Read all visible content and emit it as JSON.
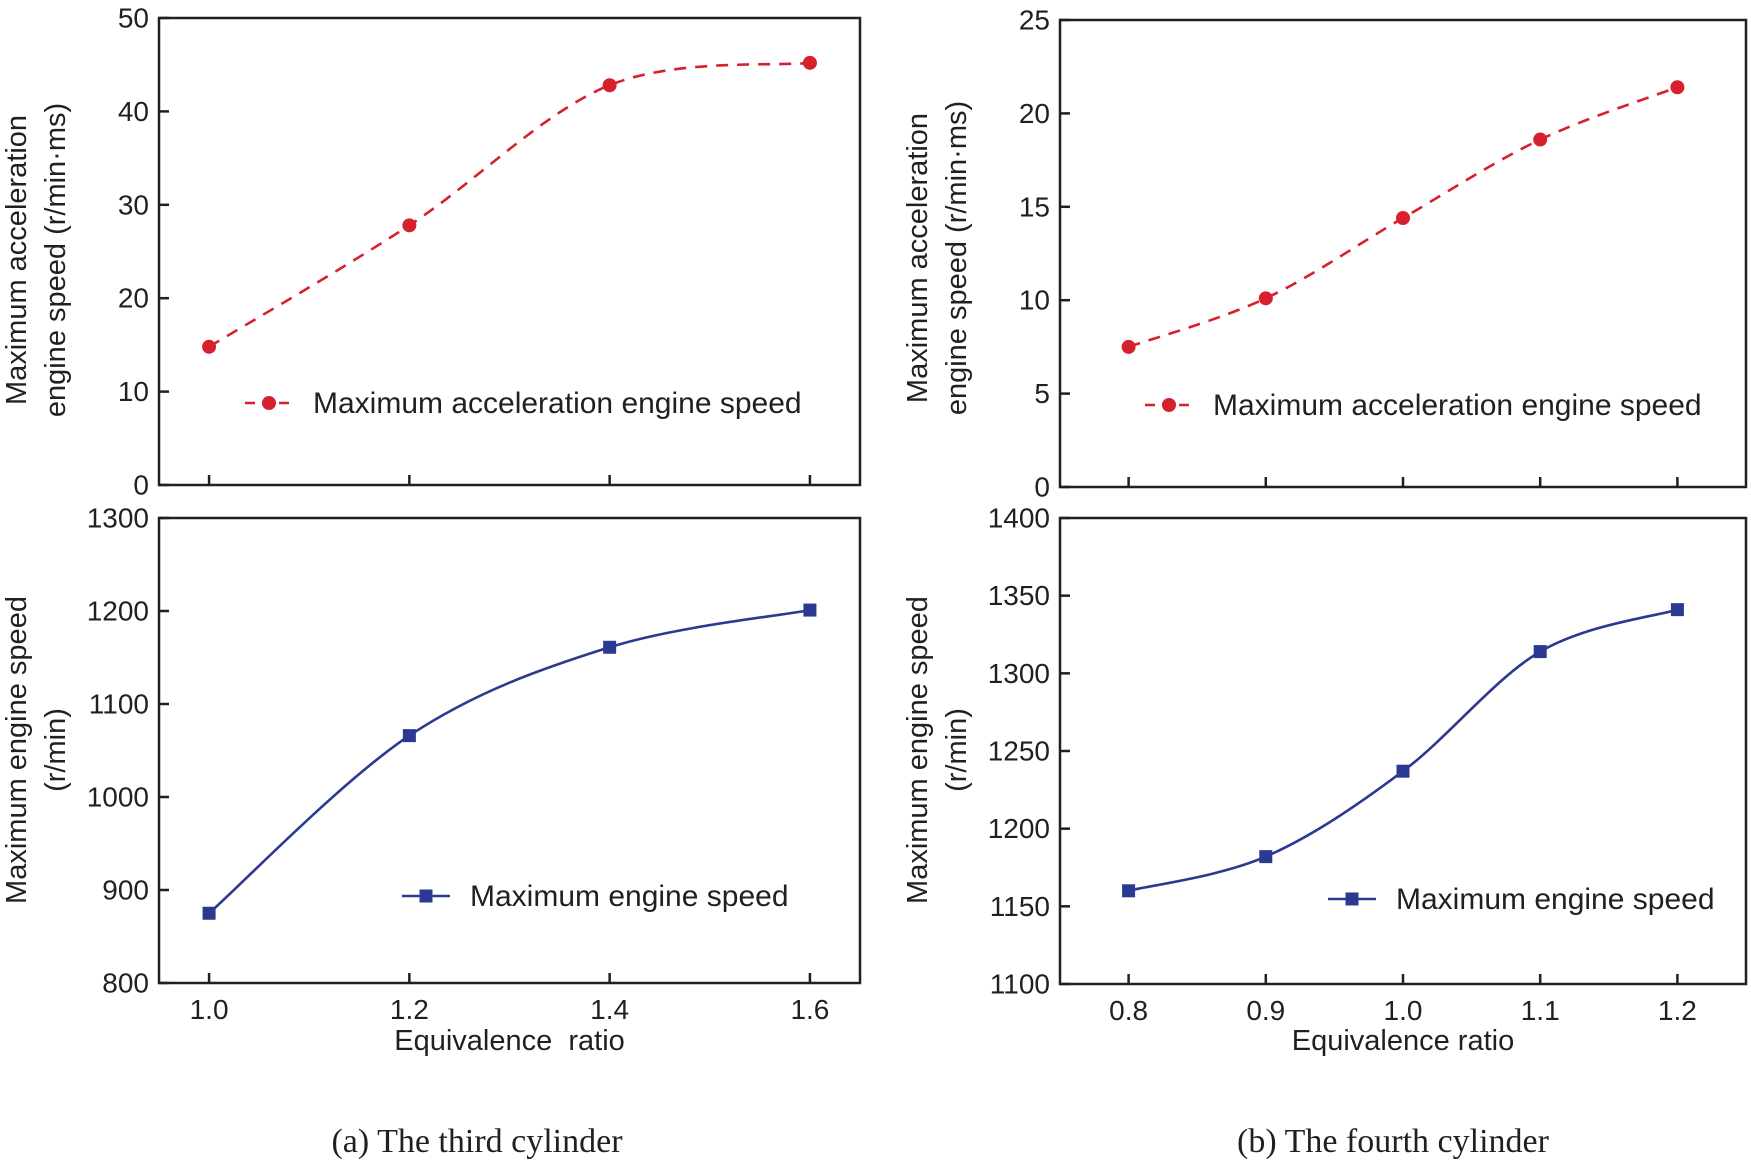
{
  "chart_data": [
    {
      "type": "line",
      "panel": "a",
      "position": "top",
      "title": "",
      "xlabel": "",
      "ylabel_lines": [
        "Maximum acceleration",
        "engine speed (r/min·ms)"
      ],
      "ylim": [
        0,
        50
      ],
      "yticks": [
        "0",
        "10",
        "20",
        "30",
        "40",
        "50"
      ],
      "xlim": [
        0.95,
        1.65
      ],
      "xticks": [
        1.0,
        1.2,
        1.4,
        1.6
      ],
      "xtick_labels": [],
      "series": [
        {
          "name": "Maximum acceleration engine speed",
          "x": [
            1.0,
            1.2,
            1.4,
            1.6
          ],
          "y": [
            14.8,
            27.8,
            42.8,
            45.2
          ],
          "color": "#d7202e",
          "marker": "circle",
          "line_style": "dashed"
        }
      ],
      "legend_position": "bottom-right"
    },
    {
      "type": "line",
      "panel": "a",
      "position": "bottom",
      "title": "",
      "xlabel": "Equivalence  ratio",
      "ylabel_lines": [
        "Maximum engine speed",
        "(r/min)"
      ],
      "ylim": [
        800,
        1300
      ],
      "yticks": [
        "800",
        "900",
        "1000",
        "1100",
        "1200",
        "1300"
      ],
      "xlim": [
        0.95,
        1.65
      ],
      "xticks": [
        1.0,
        1.2,
        1.4,
        1.6
      ],
      "xtick_labels": [
        "1.0",
        "1.2",
        "1.4",
        "1.6"
      ],
      "series": [
        {
          "name": "Maximum engine speed",
          "x": [
            1.0,
            1.2,
            1.4,
            1.6
          ],
          "y": [
            875,
            1066,
            1161,
            1201
          ],
          "color": "#2b3990",
          "marker": "square",
          "line_style": "solid"
        }
      ],
      "legend_position": "bottom-right"
    },
    {
      "type": "line",
      "panel": "b",
      "position": "top",
      "title": "",
      "xlabel": "",
      "ylabel_lines": [
        "Maximum acceleration",
        "engine speed (r/min·ms)"
      ],
      "ylim": [
        0,
        25
      ],
      "yticks": [
        "0",
        "5",
        "10",
        "15",
        "20",
        "25"
      ],
      "xlim": [
        0.75,
        1.25
      ],
      "xticks": [
        0.8,
        0.9,
        1.0,
        1.1,
        1.2
      ],
      "xtick_labels": [],
      "series": [
        {
          "name": "Maximum acceleration engine speed",
          "x": [
            0.8,
            0.9,
            1.0,
            1.1,
            1.2
          ],
          "y": [
            7.5,
            10.1,
            14.4,
            18.6,
            21.4
          ],
          "color": "#d7202e",
          "marker": "circle",
          "line_style": "dashed"
        }
      ],
      "legend_position": "bottom-right"
    },
    {
      "type": "line",
      "panel": "b",
      "position": "bottom",
      "title": "",
      "xlabel": "Equivalence ratio",
      "ylabel_lines": [
        "Maximum engine speed",
        "(r/min)"
      ],
      "ylim": [
        1100,
        1400
      ],
      "yticks": [
        "1100",
        "1150",
        "1200",
        "1250",
        "1300",
        "1350",
        "1400"
      ],
      "xlim": [
        0.75,
        1.25
      ],
      "xticks": [
        0.8,
        0.9,
        1.0,
        1.1,
        1.2
      ],
      "xtick_labels": [
        "0.8",
        "0.9",
        "1.0",
        "1.1",
        "1.2"
      ],
      "series": [
        {
          "name": "Maximum engine speed",
          "x": [
            0.8,
            0.9,
            1.0,
            1.1,
            1.2
          ],
          "y": [
            1160,
            1182,
            1237,
            1314,
            1341
          ],
          "color": "#2b3990",
          "marker": "square",
          "line_style": "solid"
        }
      ],
      "legend_position": "bottom-right"
    }
  ],
  "captions": {
    "a": "(a) The third cylinder",
    "b": "(b) The fourth cylinder"
  }
}
